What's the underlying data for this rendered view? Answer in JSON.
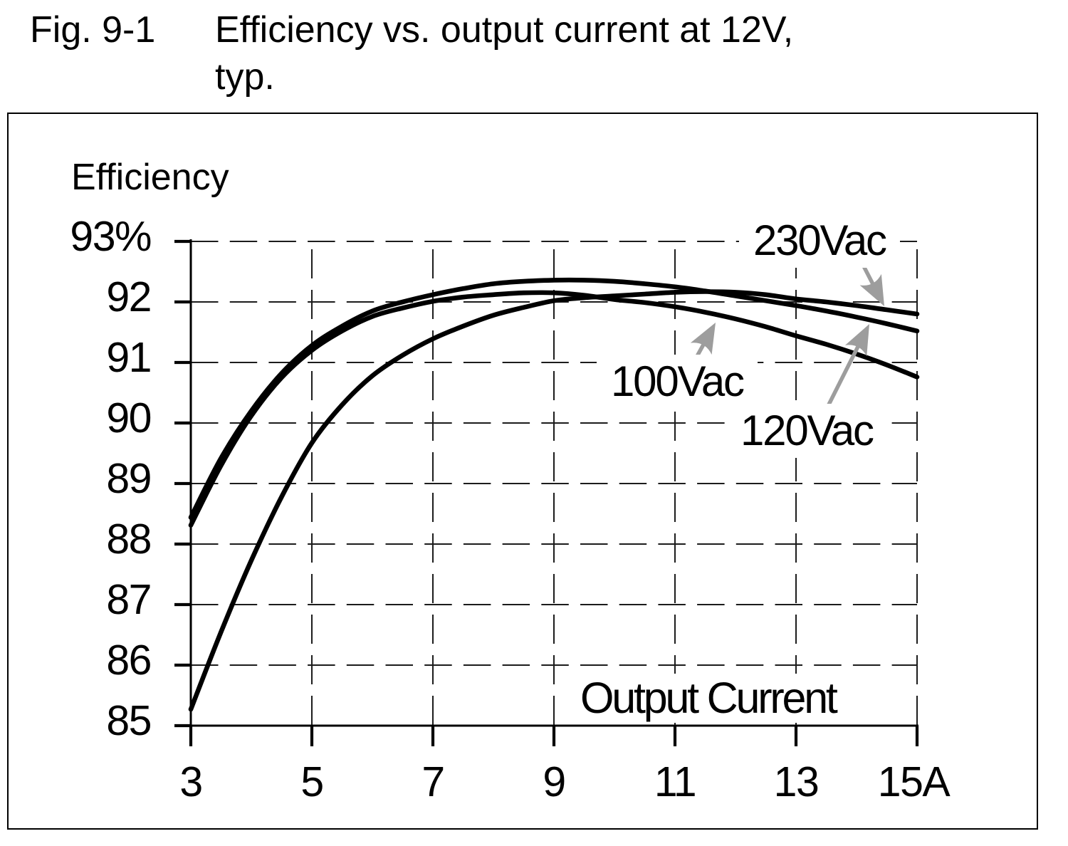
{
  "figure": {
    "label": "Fig. 9-1",
    "title_line1": "Efficiency vs. output current at 12V,",
    "title_line2": "typ."
  },
  "chart_data": {
    "type": "line",
    "title": "Fig. 9-1  Efficiency vs. output current at 12V, typ.",
    "xlabel": "Output Current",
    "ylabel": "Efficiency",
    "x_unit": "A",
    "y_unit": "%",
    "xlim": [
      3,
      15
    ],
    "ylim": [
      85,
      93
    ],
    "x_ticks": [
      3,
      5,
      7,
      9,
      11,
      13,
      15
    ],
    "x_tick_labels": [
      "3",
      "5",
      "7",
      "9",
      "11",
      "13",
      "15A"
    ],
    "y_ticks": [
      93,
      92,
      91,
      90,
      89,
      88,
      87,
      86,
      85
    ],
    "y_tick_labels": [
      "93%",
      "92",
      "91",
      "90",
      "89",
      "88",
      "87",
      "86",
      "85"
    ],
    "grid": "dashed",
    "legend_position": "annotated-arrows",
    "series": [
      {
        "name": "230Vac",
        "x": [
          3,
          3.5,
          4,
          4.5,
          5,
          5.5,
          6,
          6.5,
          7,
          7.5,
          8,
          8.5,
          9,
          9.5,
          10,
          10.5,
          11,
          11.5,
          12,
          12.5,
          13,
          13.5,
          14,
          14.5,
          15
        ],
        "values": [
          85.27,
          86.55,
          87.73,
          88.78,
          89.67,
          90.3,
          90.78,
          91.12,
          91.39,
          91.6,
          91.78,
          91.91,
          92.02,
          92.07,
          92.1,
          92.13,
          92.16,
          92.17,
          92.16,
          92.12,
          92.05,
          92.0,
          91.94,
          91.87,
          91.8
        ]
      },
      {
        "name": "120Vac",
        "x": [
          3,
          3.5,
          4,
          4.5,
          5,
          5.5,
          6,
          6.5,
          7,
          7.5,
          8,
          8.5,
          9,
          9.5,
          10,
          10.5,
          11,
          11.5,
          12,
          12.5,
          13,
          13.5,
          14,
          14.5,
          15
        ],
        "values": [
          88.44,
          89.42,
          90.2,
          90.82,
          91.28,
          91.6,
          91.85,
          92.0,
          92.12,
          92.22,
          92.3,
          92.34,
          92.36,
          92.36,
          92.34,
          92.3,
          92.25,
          92.18,
          92.1,
          92.02,
          91.94,
          91.85,
          91.75,
          91.64,
          91.52
        ]
      },
      {
        "name": "100Vac",
        "x": [
          3,
          3.5,
          4,
          4.5,
          5,
          5.5,
          6,
          6.5,
          7,
          7.5,
          8,
          8.5,
          9,
          9.5,
          10,
          10.5,
          11,
          11.5,
          12,
          12.5,
          13,
          13.5,
          14,
          14.5,
          15
        ],
        "values": [
          88.31,
          89.3,
          90.12,
          90.75,
          91.2,
          91.52,
          91.76,
          91.9,
          92.01,
          92.08,
          92.12,
          92.15,
          92.15,
          92.11,
          92.04,
          91.99,
          91.92,
          91.83,
          91.72,
          91.59,
          91.44,
          91.3,
          91.14,
          90.96,
          90.76
        ]
      }
    ]
  },
  "colors": {
    "curve": "#000000",
    "grid": "#1c1c1c",
    "axis": "#000000",
    "arrow": "#9d9d9d",
    "text": "#000000",
    "background": "#ffffff"
  }
}
